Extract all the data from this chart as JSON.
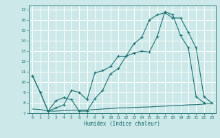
{
  "xlabel": "Humidex (Indice chaleur)",
  "bg_color": "#cce8e8",
  "grid_color": "#ffffff",
  "line_color": "#1a7070",
  "xlim": [
    -0.5,
    23.5
  ],
  "ylim": [
    7,
    17.4
  ],
  "xticks": [
    0,
    1,
    2,
    3,
    4,
    5,
    6,
    7,
    8,
    9,
    10,
    11,
    12,
    13,
    14,
    15,
    16,
    17,
    18,
    19,
    20,
    21,
    22,
    23
  ],
  "yticks": [
    7,
    8,
    9,
    10,
    11,
    12,
    13,
    14,
    15,
    16,
    17
  ],
  "line1_x": [
    0,
    1,
    2,
    3,
    4,
    5,
    6,
    7,
    8,
    9,
    10,
    11,
    12,
    13,
    14,
    15,
    16,
    17,
    18,
    19,
    20,
    21,
    22,
    23
  ],
  "line1_y": [
    7.4,
    7.35,
    7.2,
    7.2,
    7.25,
    7.28,
    7.3,
    7.3,
    7.35,
    7.4,
    7.45,
    7.5,
    7.52,
    7.55,
    7.58,
    7.6,
    7.65,
    7.68,
    7.72,
    7.75,
    7.8,
    7.82,
    7.88,
    7.95
  ],
  "line2_x": [
    0,
    1,
    2,
    3,
    4,
    5,
    6,
    7,
    8,
    9,
    10,
    11,
    12,
    13,
    14,
    15,
    16,
    17,
    18,
    19,
    20,
    21,
    22
  ],
  "line2_y": [
    10.6,
    9.0,
    7.2,
    8.2,
    8.5,
    8.3,
    7.2,
    7.2,
    8.4,
    9.2,
    10.8,
    11.3,
    12.5,
    12.8,
    13.0,
    12.9,
    14.4,
    16.8,
    16.5,
    14.5,
    13.3,
    8.6,
    8.0
  ],
  "line3_x": [
    0,
    1,
    2,
    3,
    4,
    5,
    6,
    7,
    8,
    9,
    10,
    11,
    12,
    13,
    14,
    15,
    16,
    17,
    18,
    19,
    20,
    21,
    22,
    23
  ],
  "line3_y": [
    10.6,
    9.0,
    7.2,
    7.5,
    7.8,
    9.2,
    9.0,
    8.3,
    10.9,
    11.1,
    11.5,
    12.5,
    12.5,
    13.7,
    14.3,
    16.0,
    16.5,
    16.7,
    16.2,
    16.2,
    14.8,
    13.3,
    8.6,
    8.0
  ]
}
